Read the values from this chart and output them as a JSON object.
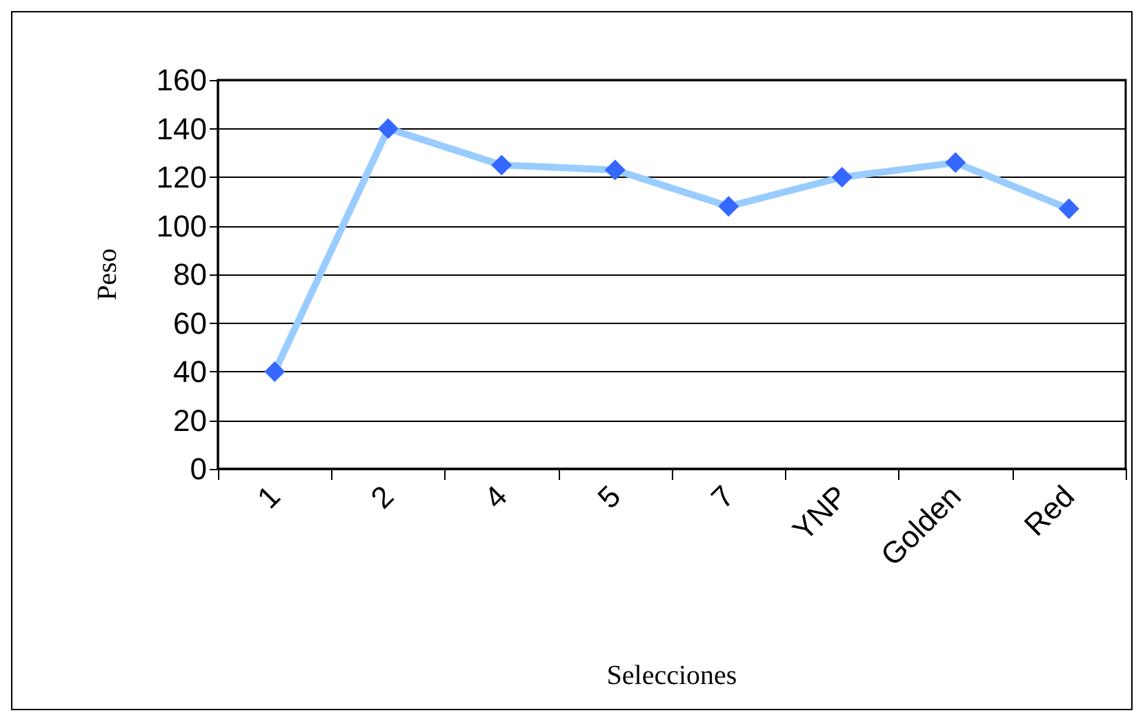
{
  "chart_data": {
    "type": "line",
    "xlabel": "Selecciones",
    "ylabel": "Peso",
    "categories": [
      "1",
      "2",
      "4",
      "5",
      "7",
      "YNP",
      "Golden",
      "Red"
    ],
    "series": [
      {
        "color": "#99ccff",
        "values": [
          40,
          140,
          125,
          123,
          108,
          120,
          126,
          107
        ]
      }
    ],
    "ylim": [
      0,
      160
    ],
    "yticks": [
      0,
      20,
      40,
      60,
      80,
      100,
      120,
      140,
      160
    ],
    "grid": "y",
    "marker": "diamond"
  }
}
